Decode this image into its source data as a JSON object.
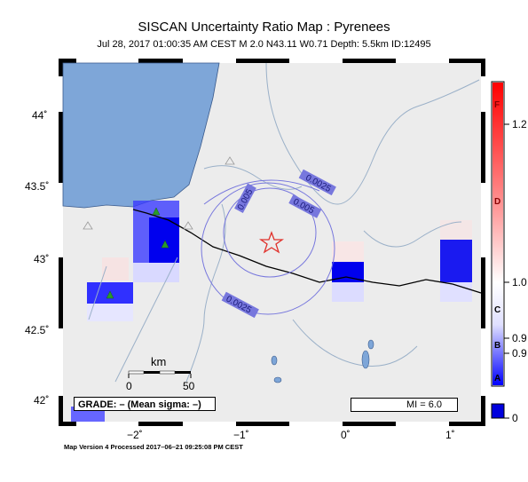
{
  "title": "SISCAN Uncertainty Ratio Map : Pyrenees",
  "subtitle": "Jul 28, 2017 01:00:35 AM CEST   M 2.0   N43.11 W0.71   Depth: 5.5km   ID:12495",
  "y_ticks": [
    "44˚",
    "43.5˚",
    "43˚",
    "42.5˚",
    "42˚"
  ],
  "x_ticks": [
    "−2˚",
    "−1˚",
    "0˚",
    "1˚"
  ],
  "contour_labels": [
    "0.0025",
    "0.005",
    "0.005",
    "0.0025"
  ],
  "scale": {
    "unit": "km",
    "start": "0",
    "end": "50"
  },
  "grade_text": "GRADE: – (Mean sigma: –)",
  "mi_text": "MI = 6.0",
  "colorbar": {
    "values": [
      "1.2",
      "1.0",
      "0.9",
      "0.9",
      "0"
    ],
    "letters": [
      "F",
      "D",
      "C",
      "B",
      "A"
    ]
  },
  "footer": "Map Version 4 Processed 2017–06–21 09:25:08 PM CEST",
  "colors": {
    "ocean": "#7ea6d8",
    "land": "#ececec",
    "river": "#9ab0c8",
    "contour": "#7777dd",
    "epicenter": "#e0302a"
  }
}
